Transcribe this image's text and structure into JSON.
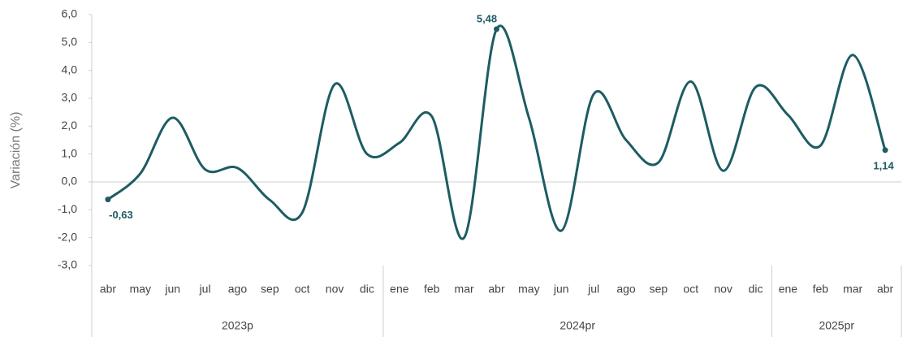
{
  "chart_data": {
    "type": "line",
    "y_label": "Variación (%)",
    "groups": [
      {
        "name": "2023p",
        "categories": [
          "abr",
          "may",
          "jun",
          "jul",
          "ago",
          "sep",
          "oct",
          "nov",
          "dic"
        ]
      },
      {
        "name": "2024pr",
        "categories": [
          "ene",
          "feb",
          "mar",
          "abr",
          "may",
          "jun",
          "jul",
          "ago",
          "sep",
          "oct",
          "nov",
          "dic"
        ]
      },
      {
        "name": "2025pr",
        "categories": [
          "ene",
          "feb",
          "mar",
          "abr"
        ]
      }
    ],
    "values": [
      -0.63,
      0.3,
      2.3,
      0.45,
      0.5,
      -0.65,
      -1.1,
      3.5,
      1.0,
      1.4,
      2.35,
      -2.0,
      5.48,
      2.3,
      -1.75,
      3.15,
      1.5,
      0.7,
      3.6,
      0.4,
      3.4,
      2.4,
      1.3,
      4.55,
      1.14
    ],
    "value_labels": [
      "-0,63",
      null,
      null,
      null,
      null,
      null,
      null,
      null,
      null,
      null,
      null,
      null,
      "5,48",
      null,
      null,
      null,
      null,
      null,
      null,
      null,
      null,
      null,
      null,
      null,
      "1,14"
    ],
    "color": "#1d5c63",
    "ylim": [
      -3,
      6
    ],
    "yticks": [
      {
        "value": -3,
        "label": "-3,0"
      },
      {
        "value": -2,
        "label": "-2,0"
      },
      {
        "value": -1,
        "label": "-1,0"
      },
      {
        "value": 0,
        "label": "0,0"
      },
      {
        "value": 1,
        "label": "1,0"
      },
      {
        "value": 2,
        "label": "2,0"
      },
      {
        "value": 3,
        "label": "3,0"
      },
      {
        "value": 4,
        "label": "4,0"
      },
      {
        "value": 5,
        "label": "5,0"
      },
      {
        "value": 6,
        "label": "6,0"
      }
    ]
  }
}
